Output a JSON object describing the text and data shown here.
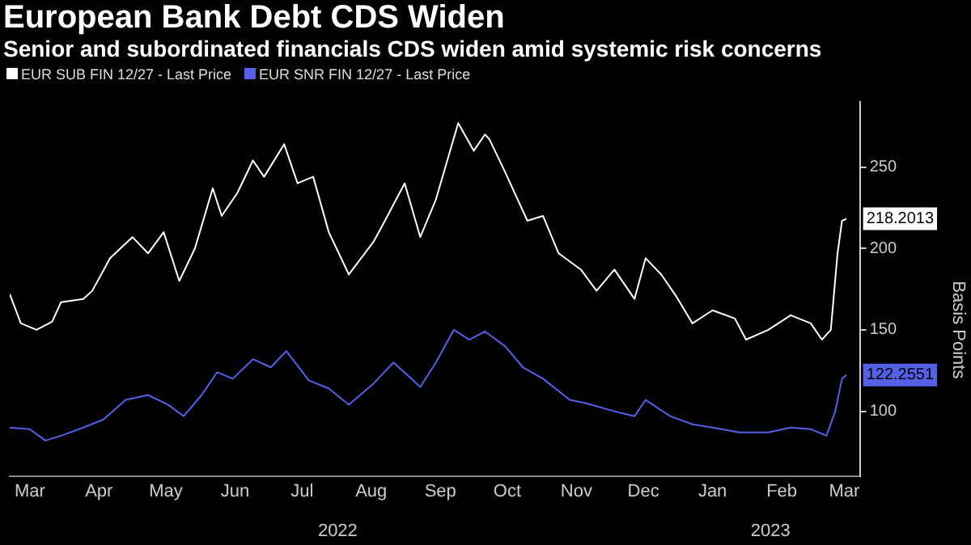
{
  "chart_data": {
    "type": "line",
    "title": "European Bank Debt CDS Widen",
    "subtitle": "Senior and subordinated financials CDS widen amid systemic risk concerns",
    "ylabel": "Basis Points",
    "xlim": [
      "2022-03-06",
      "2023-03-22"
    ],
    "xticks": [
      {
        "value": "2022-03-15",
        "label": "Mar"
      },
      {
        "value": "2022-04-15",
        "label": "Apr"
      },
      {
        "value": "2022-05-15",
        "label": "May"
      },
      {
        "value": "2022-06-15",
        "label": "Jun"
      },
      {
        "value": "2022-07-15",
        "label": "Jul"
      },
      {
        "value": "2022-08-15",
        "label": "Aug"
      },
      {
        "value": "2022-09-15",
        "label": "Sep"
      },
      {
        "value": "2022-10-15",
        "label": "Oct"
      },
      {
        "value": "2022-11-15",
        "label": "Nov"
      },
      {
        "value": "2022-12-15",
        "label": "Dec"
      },
      {
        "value": "2023-01-15",
        "label": "Jan"
      },
      {
        "value": "2023-02-15",
        "label": "Feb"
      },
      {
        "value": "2023-03-15",
        "label": "Mar"
      }
    ],
    "x2lim": [
      "2022-03-06",
      "2023-03-22"
    ],
    "x2ticks": [
      {
        "value": "2022-07-31",
        "label": "2022"
      },
      {
        "value": "2023-02-10",
        "label": "2023"
      }
    ],
    "ylim": [
      60,
      290
    ],
    "yticks": [
      100,
      150,
      200,
      250
    ],
    "legend": "top left",
    "grid": false,
    "marker": "none",
    "line_style": "solid",
    "series": [
      {
        "name": "EUR SUB FIN 12/27 - Last Price",
        "color": "#ffffff",
        "x": [
          "2022-03-06",
          "2022-03-11",
          "2022-03-18",
          "2022-03-25",
          "2022-03-29",
          "2022-04-08",
          "2022-04-12",
          "2022-04-20",
          "2022-04-30",
          "2022-05-07",
          "2022-05-14",
          "2022-05-21",
          "2022-05-28",
          "2022-06-05",
          "2022-06-09",
          "2022-06-16",
          "2022-06-23",
          "2022-06-28",
          "2022-07-07",
          "2022-07-13",
          "2022-07-20",
          "2022-07-27",
          "2022-08-05",
          "2022-08-16",
          "2022-08-20",
          "2022-08-30",
          "2022-09-06",
          "2022-09-13",
          "2022-09-23",
          "2022-09-30",
          "2022-10-05",
          "2022-10-07",
          "2022-10-14",
          "2022-10-24",
          "2022-10-31",
          "2022-11-07",
          "2022-11-17",
          "2022-11-24",
          "2022-12-02",
          "2022-12-11",
          "2022-12-16",
          "2022-12-23",
          "2022-12-30",
          "2023-01-06",
          "2023-01-15",
          "2023-01-25",
          "2023-01-30",
          "2023-02-09",
          "2023-02-19",
          "2023-02-28",
          "2023-03-05",
          "2023-03-09",
          "2023-03-12",
          "2023-03-14",
          "2023-03-16"
        ],
        "values": [
          172,
          154,
          150,
          155,
          167,
          169,
          174,
          194,
          207,
          197,
          210,
          180,
          200,
          237,
          220,
          234,
          254,
          244,
          264,
          240,
          244,
          210,
          184,
          204,
          214,
          240,
          207,
          230,
          277,
          260,
          270,
          267,
          247,
          217,
          220,
          197,
          187,
          174,
          187,
          169,
          194,
          184,
          170,
          154,
          162,
          157,
          144,
          150,
          159,
          154,
          144,
          150,
          197,
          217,
          218.2013
        ],
        "value_labels": [
          null,
          null,
          null,
          null,
          null,
          null,
          null,
          null,
          null,
          null,
          null,
          null,
          null,
          null,
          null,
          null,
          null,
          null,
          null,
          null,
          null,
          null,
          null,
          null,
          null,
          null,
          null,
          null,
          null,
          null,
          null,
          null,
          null,
          null,
          null,
          null,
          null,
          null,
          null,
          null,
          null,
          null,
          null,
          null,
          null,
          null,
          null,
          null,
          null,
          null,
          null,
          null,
          null,
          null,
          "218.2013"
        ]
      },
      {
        "name": "EUR SNR FIN 12/27 - Last Price",
        "color": "#5560e8",
        "x": [
          "2022-03-06",
          "2022-03-15",
          "2022-03-22",
          "2022-03-29",
          "2022-04-08",
          "2022-04-17",
          "2022-04-27",
          "2022-05-07",
          "2022-05-16",
          "2022-05-23",
          "2022-05-31",
          "2022-06-07",
          "2022-06-14",
          "2022-06-23",
          "2022-07-01",
          "2022-07-08",
          "2022-07-18",
          "2022-07-27",
          "2022-08-05",
          "2022-08-16",
          "2022-08-25",
          "2022-09-06",
          "2022-09-13",
          "2022-09-21",
          "2022-09-28",
          "2022-10-05",
          "2022-10-07",
          "2022-10-14",
          "2022-10-22",
          "2022-10-31",
          "2022-11-12",
          "2022-11-19",
          "2022-12-02",
          "2022-12-11",
          "2022-12-16",
          "2022-12-27",
          "2023-01-06",
          "2023-01-15",
          "2023-01-27",
          "2023-02-09",
          "2023-02-19",
          "2023-02-28",
          "2023-03-07",
          "2023-03-11",
          "2023-03-14",
          "2023-03-16"
        ],
        "values": [
          90,
          89,
          82,
          85,
          90,
          95,
          107,
          110,
          104,
          97,
          110,
          124,
          120,
          132,
          127,
          137,
          119,
          114,
          104,
          117,
          130,
          115,
          130,
          150,
          144,
          149,
          147,
          140,
          127,
          120,
          107,
          105,
          100,
          97,
          107,
          97,
          92,
          90,
          87,
          87,
          90,
          89,
          85,
          100,
          120,
          122.2551
        ],
        "value_labels": [
          null,
          null,
          null,
          null,
          null,
          null,
          null,
          null,
          null,
          null,
          null,
          null,
          null,
          null,
          null,
          null,
          null,
          null,
          null,
          null,
          null,
          null,
          null,
          null,
          null,
          null,
          null,
          null,
          null,
          null,
          null,
          null,
          null,
          null,
          null,
          null,
          null,
          null,
          null,
          null,
          null,
          null,
          null,
          null,
          null,
          "122.2551"
        ]
      }
    ]
  }
}
